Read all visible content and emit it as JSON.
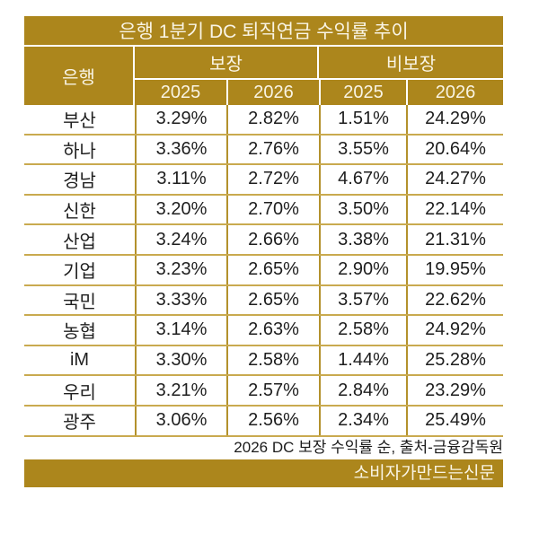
{
  "title": "은행 1분기 DC 퇴직연금 수익률 추이",
  "table": {
    "bank_header": "은행",
    "groups": [
      {
        "label": "보장",
        "years": [
          "2025",
          "2026"
        ]
      },
      {
        "label": "비보장",
        "years": [
          "2025",
          "2026"
        ]
      }
    ],
    "rows": [
      {
        "bank": "부산",
        "values": [
          "3.29%",
          "2.82%",
          "1.51%",
          "24.29%"
        ]
      },
      {
        "bank": "하나",
        "values": [
          "3.36%",
          "2.76%",
          "3.55%",
          "20.64%"
        ]
      },
      {
        "bank": "경남",
        "values": [
          "3.11%",
          "2.72%",
          "4.67%",
          "24.27%"
        ]
      },
      {
        "bank": "신한",
        "values": [
          "3.20%",
          "2.70%",
          "3.50%",
          "22.14%"
        ]
      },
      {
        "bank": "산업",
        "values": [
          "3.24%",
          "2.66%",
          "3.38%",
          "21.31%"
        ]
      },
      {
        "bank": "기업",
        "values": [
          "3.23%",
          "2.65%",
          "2.90%",
          "19.95%"
        ]
      },
      {
        "bank": "국민",
        "values": [
          "3.33%",
          "2.65%",
          "3.57%",
          "22.62%"
        ]
      },
      {
        "bank": "농협",
        "values": [
          "3.14%",
          "2.63%",
          "2.58%",
          "24.92%"
        ]
      },
      {
        "bank": "iM",
        "values": [
          "3.30%",
          "2.58%",
          "1.44%",
          "25.28%"
        ]
      },
      {
        "bank": "우리",
        "values": [
          "3.21%",
          "2.57%",
          "2.84%",
          "23.29%"
        ]
      },
      {
        "bank": "광주",
        "values": [
          "3.06%",
          "2.56%",
          "2.34%",
          "25.49%"
        ]
      }
    ]
  },
  "source_note": "2026 DC 보장 수익률 순, 출처-금융감독원",
  "footer_brand": "소비자가만드는신문",
  "colors": {
    "gold": "#AC861C",
    "header_text": "#F9F4E4",
    "cell_text": "#1E1E1E",
    "line_vertical": "#B3912C",
    "line_horizontal": "#C9AA4F",
    "background": "#FFFFFF"
  },
  "chart_data": {
    "type": "table",
    "title": "은행 1분기 DC 퇴직연금 수익률 추이",
    "columns": [
      "은행",
      "보장 2025",
      "보장 2026",
      "비보장 2025",
      "비보장 2026"
    ],
    "unit": "%",
    "rows": [
      [
        "부산",
        3.29,
        2.82,
        1.51,
        24.29
      ],
      [
        "하나",
        3.36,
        2.76,
        3.55,
        20.64
      ],
      [
        "경남",
        3.11,
        2.72,
        4.67,
        24.27
      ],
      [
        "신한",
        3.2,
        2.7,
        3.5,
        22.14
      ],
      [
        "산업",
        3.24,
        2.66,
        3.38,
        21.31
      ],
      [
        "기업",
        3.23,
        2.65,
        2.9,
        19.95
      ],
      [
        "국민",
        3.33,
        2.65,
        3.57,
        22.62
      ],
      [
        "농협",
        3.14,
        2.63,
        2.58,
        24.92
      ],
      [
        "iM",
        3.3,
        2.58,
        1.44,
        25.28
      ],
      [
        "우리",
        3.21,
        2.57,
        2.84,
        23.29
      ],
      [
        "광주",
        3.06,
        2.56,
        2.34,
        25.49
      ]
    ],
    "sort_note": "2026 DC 보장 수익률 순",
    "source": "출처-금융감독원"
  }
}
